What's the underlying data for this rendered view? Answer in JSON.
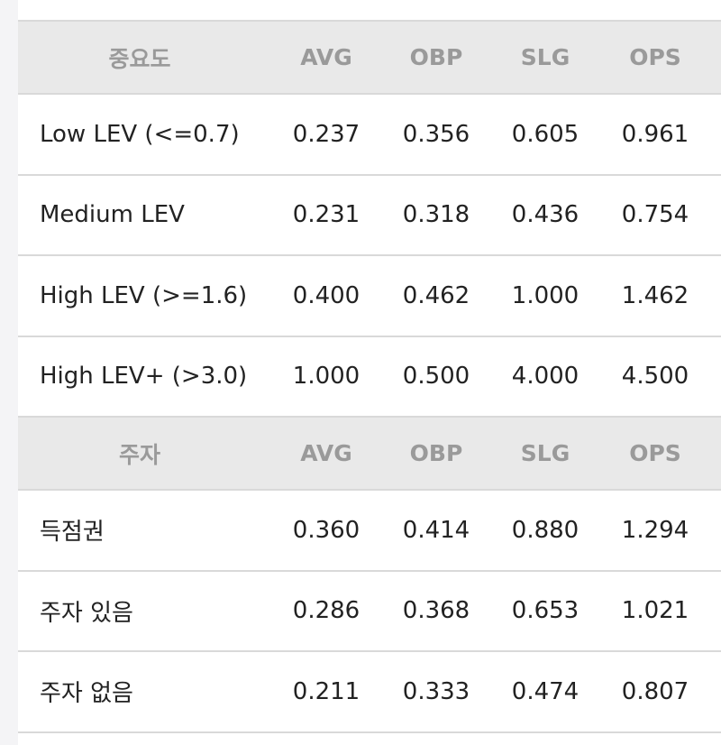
{
  "sections": [
    {
      "header": [
        "중요도",
        "AVG",
        "OBP",
        "SLG",
        "OPS"
      ],
      "rows": [
        [
          "Low LEV (<=0.7)",
          "0.237",
          "0.356",
          "0.605",
          "0.961"
        ],
        [
          "Medium LEV",
          "0.231",
          "0.318",
          "0.436",
          "0.754"
        ],
        [
          "High LEV (>=1.6)",
          "0.400",
          "0.462",
          "1.000",
          "1.462"
        ],
        [
          "High LEV+ (>3.0)",
          "1.000",
          "0.500",
          "4.000",
          "4.500"
        ]
      ]
    },
    {
      "header": [
        "주자",
        "AVG",
        "OBP",
        "SLG",
        "OPS"
      ],
      "rows": [
        [
          "득점권",
          "0.360",
          "0.414",
          "0.880",
          "1.294"
        ],
        [
          "주자 있음",
          "0.286",
          "0.368",
          "0.653",
          "1.021"
        ],
        [
          "주자 없음",
          "0.211",
          "0.333",
          "0.474",
          "0.807"
        ]
      ]
    }
  ]
}
